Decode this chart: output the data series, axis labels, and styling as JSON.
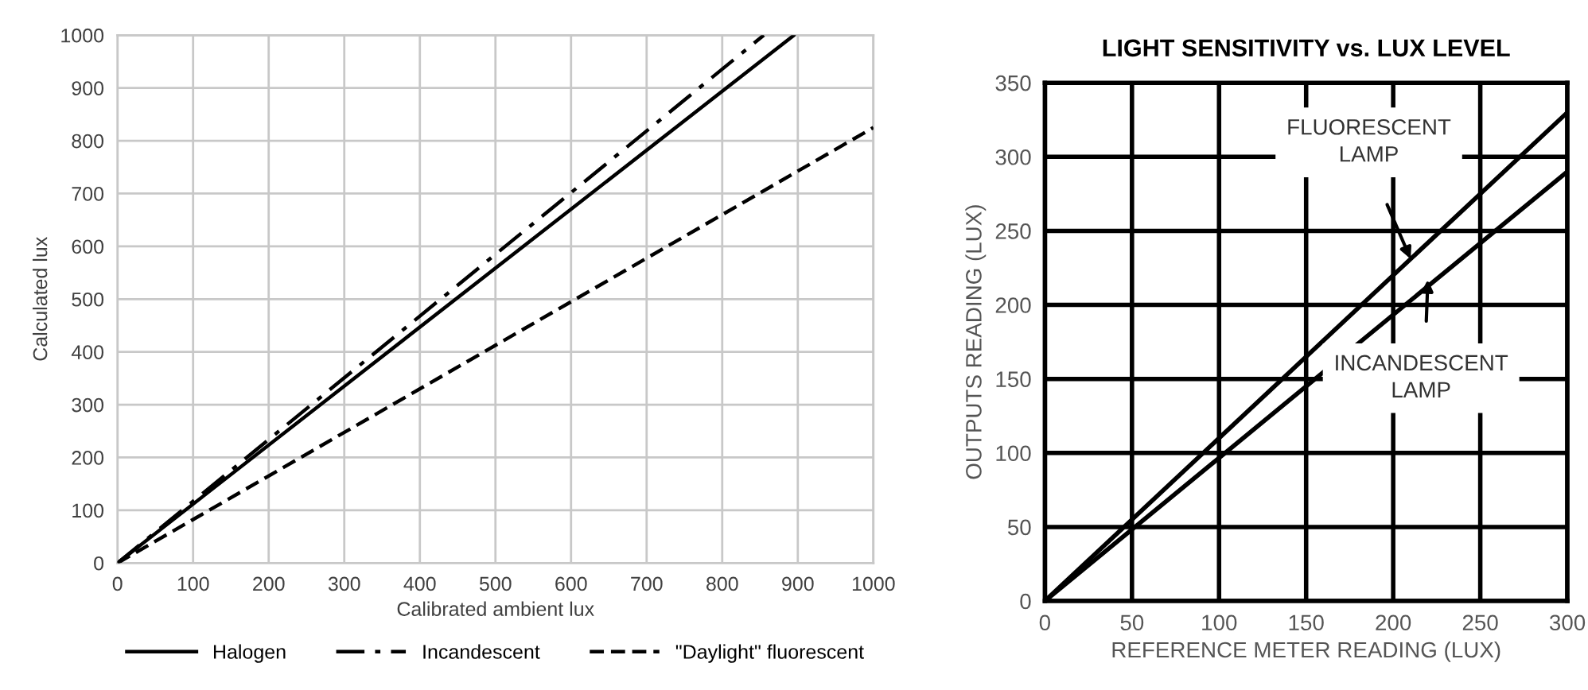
{
  "chart_data": [
    {
      "type": "line",
      "xlabel": "Calibrated ambient lux",
      "ylabel": "Calculated lux",
      "xlim": [
        0,
        1000
      ],
      "ylim": [
        0,
        1000
      ],
      "xticks": [
        0,
        100,
        200,
        300,
        400,
        500,
        600,
        700,
        800,
        900,
        1000
      ],
      "yticks": [
        0,
        100,
        200,
        300,
        400,
        500,
        600,
        700,
        800,
        900,
        1000
      ],
      "grid": true,
      "legend": "bottom",
      "marker": "none",
      "series": [
        {
          "name": "Halogen",
          "color": "#000000",
          "line_style": "solid",
          "x": [
            0,
            895
          ],
          "values": [
            0,
            1000
          ]
        },
        {
          "name": "Incandescent",
          "color": "#000000",
          "line_style": "dashdot",
          "x": [
            0,
            855
          ],
          "values": [
            0,
            1000
          ]
        },
        {
          "name": "\"Daylight\" fluorescent",
          "color": "#000000",
          "line_style": "dashed",
          "x": [
            0,
            1000
          ],
          "values": [
            0,
            825
          ]
        }
      ]
    },
    {
      "type": "line",
      "title": "LIGHT SENSITIVITY vs. LUX LEVEL",
      "xlabel": "REFERENCE METER READING (LUX)",
      "ylabel": "OUTPUTS READING (LUX)",
      "xlim": [
        0,
        300
      ],
      "ylim": [
        0,
        350
      ],
      "xticks": [
        0,
        50,
        100,
        150,
        200,
        250,
        300
      ],
      "yticks": [
        0,
        50,
        100,
        150,
        200,
        250,
        300,
        350
      ],
      "grid": true,
      "marker": "none",
      "series": [
        {
          "color": "#000000",
          "line_style": "solid",
          "x": [
            0,
            300
          ],
          "values": [
            0,
            330
          ]
        },
        {
          "color": "#000000",
          "line_style": "solid",
          "x": [
            0,
            300
          ],
          "values": [
            0,
            290
          ]
        }
      ],
      "annotations": [
        "FLUORESCENT\nLAMP",
        "INCANDESCENT\nLAMP"
      ]
    }
  ]
}
